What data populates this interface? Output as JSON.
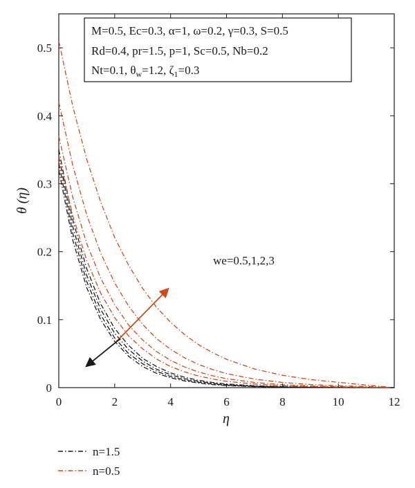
{
  "chart_data": {
    "type": "line",
    "xlabel": "η",
    "ylabel": "θ (η)",
    "xlim": [
      0,
      12
    ],
    "ylim": [
      0,
      0.55
    ],
    "xticks": [
      0,
      2,
      4,
      6,
      8,
      10,
      12
    ],
    "yticks": [
      0,
      0.1,
      0.2,
      0.3,
      0.4,
      0.5
    ],
    "ytick_labels": [
      "0",
      "0.1",
      "0.2",
      "0.3",
      "0.4",
      "0.5"
    ],
    "grid": false,
    "legend_position": "below-left",
    "parameter_box": {
      "lines": [
        "M=0.5, Ec=0.3, α=1, ω=0.2, γ=0.3, S=0.5",
        "Rd=0.4, pr=1.5, p=1, Sc=0.5, Nb=0.2",
        [
          "Nt=0.1, θ",
          "w",
          "=1.2, ζ",
          "1",
          "=0.3"
        ]
      ]
    },
    "annotation": "we=0.5,1,2,3",
    "series": [
      {
        "name": "n=1.5",
        "color": "#1a1a1a",
        "dash": "dashdot",
        "curves": [
          {
            "x": [
              0,
              0.5,
              1,
              1.5,
              2,
              2.5,
              3,
              3.5,
              4,
              4.5,
              5,
              5.5,
              6,
              7,
              8,
              9,
              10,
              11,
              12
            ],
            "y": [
              0.32,
              0.217,
              0.147,
              0.1,
              0.068,
              0.046,
              0.031,
              0.021,
              0.0145,
              0.0098,
              0.0067,
              0.0045,
              0.0031,
              0.0014,
              0.0007,
              0.0003,
              0.0001,
              5e-05,
              0
            ]
          },
          {
            "x": [
              0,
              0.5,
              1,
              1.5,
              2,
              2.5,
              3,
              3.5,
              4,
              4.5,
              5,
              5.5,
              6,
              7,
              8,
              9,
              10,
              11,
              12
            ],
            "y": [
              0.33,
              0.227,
              0.156,
              0.107,
              0.073,
              0.05,
              0.035,
              0.024,
              0.0164,
              0.0113,
              0.0078,
              0.0053,
              0.0037,
              0.0017,
              0.0008,
              0.0004,
              0.0002,
              0.0001,
              0
            ]
          },
          {
            "x": [
              0,
              0.5,
              1,
              1.5,
              2,
              2.5,
              3,
              3.5,
              4,
              4.5,
              5,
              5.5,
              6,
              7,
              8,
              9,
              10,
              11,
              12
            ],
            "y": [
              0.34,
              0.237,
              0.165,
              0.115,
              0.08,
              0.056,
              0.039,
              0.027,
              0.0189,
              0.0131,
              0.0092,
              0.0064,
              0.0044,
              0.0021,
              0.001,
              0.0005,
              0.0002,
              0.0001,
              0
            ]
          },
          {
            "x": [
              0,
              0.5,
              1,
              1.5,
              2,
              2.5,
              3,
              3.5,
              4,
              4.5,
              5,
              5.5,
              6,
              7,
              8,
              9,
              10,
              11,
              12
            ],
            "y": [
              0.35,
              0.247,
              0.175,
              0.123,
              0.087,
              0.062,
              0.043,
              0.031,
              0.0217,
              0.0153,
              0.0108,
              0.0076,
              0.0054,
              0.0027,
              0.0013,
              0.0007,
              0.0003,
              0.0002,
              0
            ]
          }
        ]
      },
      {
        "name": "n=0.5",
        "color": "#d04a16",
        "dash": "dashdot",
        "curves": [
          {
            "x": [
              0,
              0.5,
              1,
              1.5,
              2,
              2.5,
              3,
              3.5,
              4,
              4.5,
              5,
              5.5,
              6,
              7,
              8,
              9,
              10,
              11,
              12
            ],
            "y": [
              0.34,
              0.253,
              0.187,
              0.139,
              0.103,
              0.076,
              0.057,
              0.042,
              0.031,
              0.0231,
              0.0171,
              0.0127,
              0.0094,
              0.0052,
              0.0028,
              0.0016,
              0.0009,
              0.0005,
              0
            ]
          },
          {
            "x": [
              0,
              0.5,
              1,
              1.5,
              2,
              2.5,
              3,
              3.5,
              4,
              4.5,
              5,
              5.5,
              6,
              7,
              8,
              9,
              10,
              11,
              12
            ],
            "y": [
              0.37,
              0.28,
              0.212,
              0.161,
              0.122,
              0.092,
              0.07,
              0.053,
              0.0401,
              0.0304,
              0.023,
              0.0174,
              0.0132,
              0.0076,
              0.0043,
              0.0025,
              0.0014,
              0.0008,
              0
            ]
          },
          {
            "x": [
              0,
              0.5,
              1,
              1.5,
              2,
              2.5,
              3,
              3.5,
              4,
              4.5,
              5,
              5.5,
              6,
              7,
              8,
              9,
              10,
              11,
              12
            ],
            "y": [
              0.42,
              0.327,
              0.254,
              0.198,
              0.154,
              0.12,
              0.093,
              0.072,
              0.0563,
              0.0438,
              0.0341,
              0.0266,
              0.0207,
              0.0125,
              0.0076,
              0.0046,
              0.0028,
              0.0017,
              0
            ]
          },
          {
            "x": [
              0,
              0.5,
              1,
              1.5,
              2,
              2.5,
              3,
              3.5,
              4,
              4.5,
              5,
              5.5,
              6,
              7,
              8,
              9,
              10,
              11,
              12
            ],
            "y": [
              0.51,
              0.414,
              0.336,
              0.273,
              0.221,
              0.18,
              0.146,
              0.118,
              0.096,
              0.078,
              0.0633,
              0.0514,
              0.0417,
              0.0275,
              0.0181,
              0.0119,
              0.0078,
              0.0038,
              0
            ]
          }
        ]
      }
    ],
    "arrows": [
      {
        "color": "#d04a16",
        "from": [
          2,
          0.065
        ],
        "to": [
          3.9,
          0.145
        ]
      },
      {
        "color": "#1a1a1a",
        "from": [
          2.2,
          0.072
        ],
        "to": [
          1.0,
          0.032
        ]
      }
    ]
  }
}
